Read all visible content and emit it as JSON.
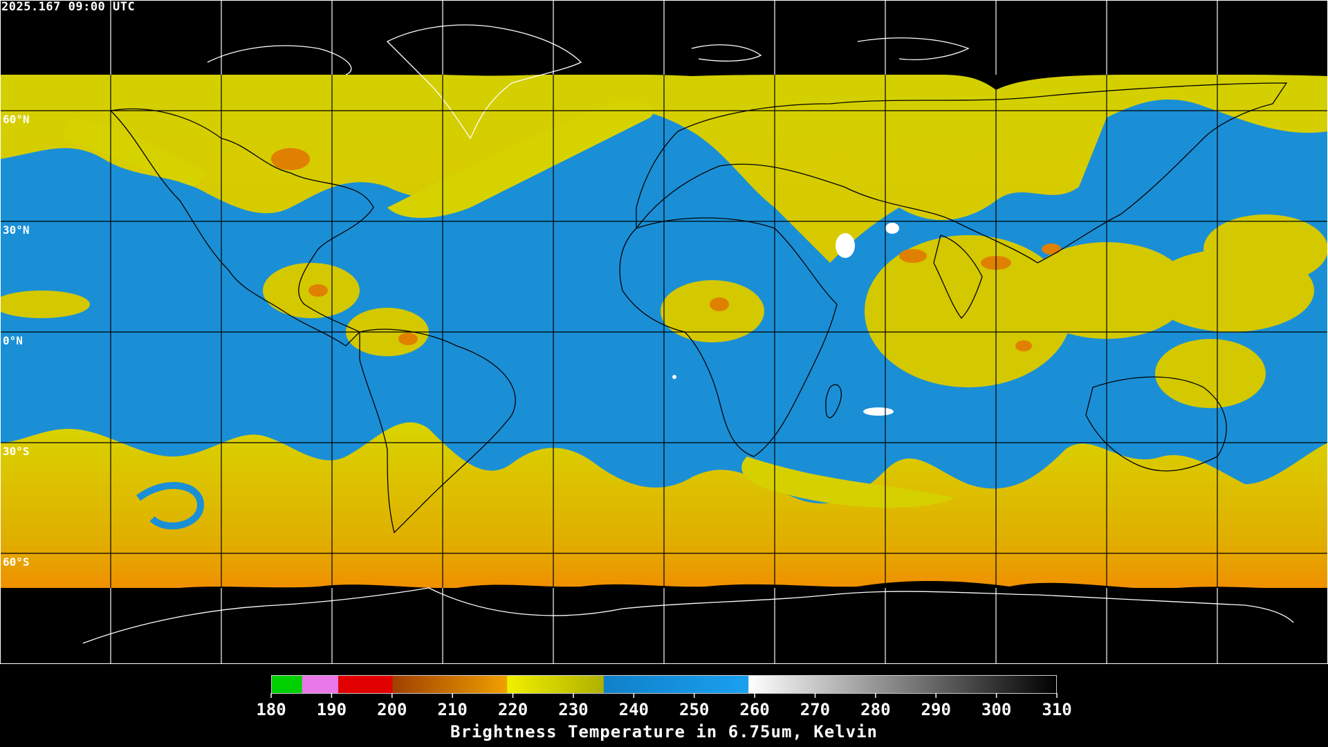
{
  "header": {
    "timestamp": "2025.167 09:00 UTC"
  },
  "map": {
    "lat_labels": [
      {
        "lat": 60,
        "text": "60°N"
      },
      {
        "lat": 30,
        "text": "30°N"
      },
      {
        "lat": 0,
        "text": "0°N"
      },
      {
        "lat": -30,
        "text": "30°S"
      },
      {
        "lat": -60,
        "text": "60°S"
      }
    ],
    "gridlines": {
      "lon_step_deg": 30,
      "lat_step_deg": 30
    },
    "colors": {
      "background": "#000000",
      "moist_yellow": "#d4d000",
      "dry_blue": "#1a8fd6",
      "grid": "#000000",
      "outline": "#ffffff"
    }
  },
  "colorbar": {
    "title": "Brightness Temperature in 6.75um, Kelvin",
    "min": 180,
    "max": 310,
    "ticks": [
      180,
      190,
      200,
      210,
      220,
      230,
      240,
      250,
      260,
      270,
      280,
      290,
      300,
      310
    ],
    "segments": [
      {
        "from": 180,
        "to": 185,
        "color": "#00d000"
      },
      {
        "from": 185,
        "to": 191,
        "color": "#e878e8"
      },
      {
        "from": 191,
        "to": 200,
        "color": "#e00000"
      },
      {
        "from": 200,
        "to": 219,
        "gradient": [
          "#a04000",
          "#f0a000"
        ]
      },
      {
        "from": 219,
        "to": 235,
        "gradient": [
          "#f0f000",
          "#b0b000"
        ]
      },
      {
        "from": 235,
        "to": 259,
        "gradient": [
          "#1080c8",
          "#1aa0f0"
        ]
      },
      {
        "from": 259,
        "to": 310,
        "gradient": [
          "#ffffff",
          "#000000"
        ]
      }
    ]
  }
}
